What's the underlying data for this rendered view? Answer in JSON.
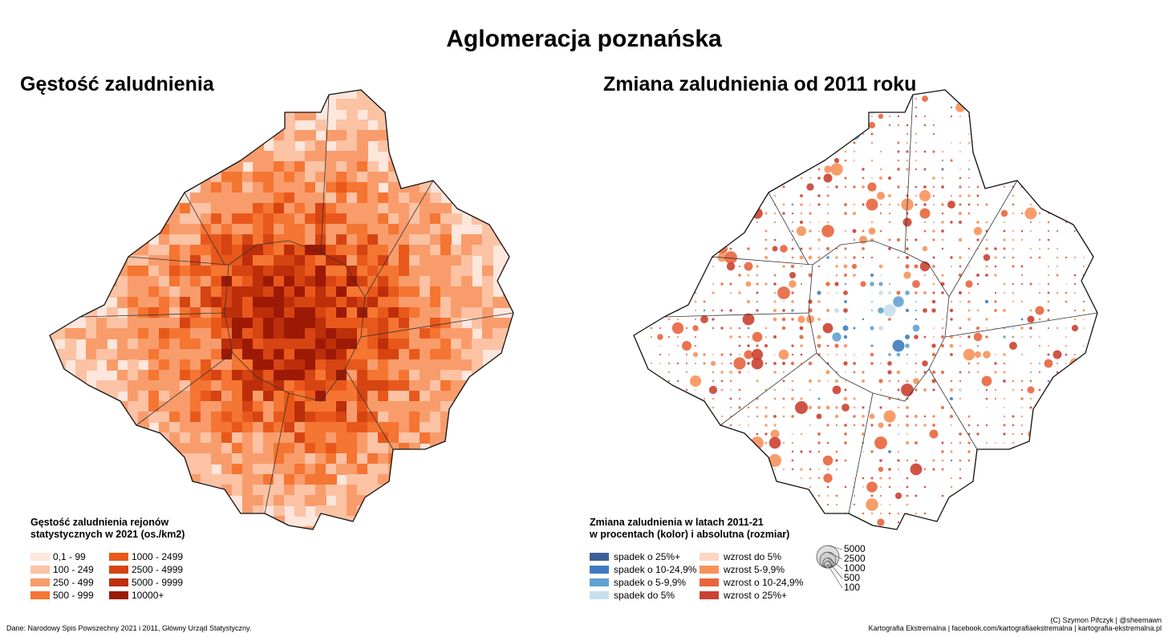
{
  "title": "Aglomeracja poznańska",
  "density_map": {
    "title": "Gęstość zaludnienia",
    "legend": {
      "title": [
        "Gęstość zaludnienia rejonów",
        "statystycznych w 2021 (os./km2)"
      ],
      "items": [
        {
          "label": "0,1 - 99",
          "color": "#fde6dc"
        },
        {
          "label": "100 - 249",
          "color": "#fbc2a4"
        },
        {
          "label": "250 - 499",
          "color": "#f99c6c"
        },
        {
          "label": "500 - 999",
          "color": "#f57532"
        },
        {
          "label": "1000 - 2499",
          "color": "#e9581b"
        },
        {
          "label": "2500 - 4999",
          "color": "#d64412"
        },
        {
          "label": "5000 - 9999",
          "color": "#bd2e0a"
        },
        {
          "label": "10000+",
          "color": "#9c1905"
        }
      ]
    }
  },
  "change_map": {
    "title": "Zmiana zaludnienia od 2011 roku",
    "legend": {
      "title": [
        "Zmiana zaludnienia w latach 2011-21",
        "w procentach (kolor) i absolutna (rozmiar)"
      ],
      "items": [
        {
          "label": "spadek o 25%+",
          "color": "#3d5f97"
        },
        {
          "label": "spadek o 10-24,9%",
          "color": "#3e7cbf"
        },
        {
          "label": "spadek o 5-9,9%",
          "color": "#61a1d2"
        },
        {
          "label": "spadek do 5%",
          "color": "#c8dfec"
        },
        {
          "label": "wzrost do 5%",
          "color": "#fcd6c2"
        },
        {
          "label": "wzrost 5-9,9%",
          "color": "#f7925a"
        },
        {
          "label": "wzrost o 10-24,9%",
          "color": "#e8653c"
        },
        {
          "label": "wzrost o 25%+",
          "color": "#cb4131"
        }
      ],
      "sizes": [
        5000,
        2500,
        1000,
        500,
        100
      ]
    }
  },
  "footer": {
    "source": "Dane: Narodowy Spis Powszechny 2021 i 2011, Główny Urząd Statystyczny.",
    "credit": [
      "(C) Szymon Pifczyk | @sheemawn",
      "Kartografia Ekstremalna | facebook.com/kartografiaekstremalna | kartografia-ekstremalna.pl"
    ]
  }
}
